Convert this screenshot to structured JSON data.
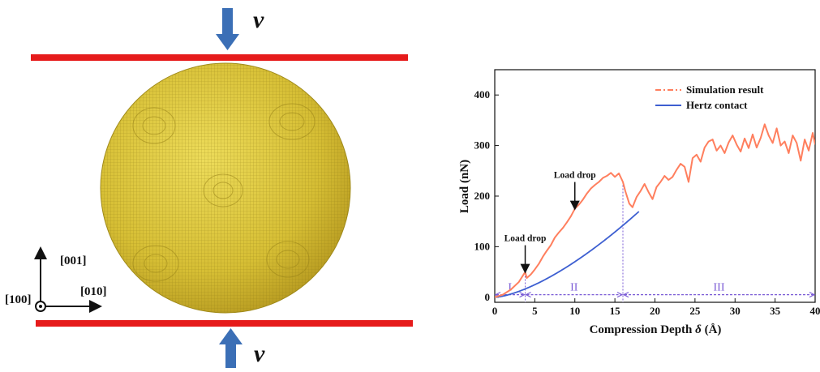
{
  "figure": {
    "velocity_symbol": "v",
    "axes_labels": {
      "x_dir": "[010]",
      "y_dir": "[001]",
      "z_dir": "[100]"
    },
    "colors": {
      "plate": "#e61b1b",
      "sphere": "#d9c236",
      "arrow": "#3b6fb6"
    }
  },
  "chart_data": {
    "type": "line",
    "xlabel_main": "Compression Depth ",
    "xlabel_symbol": "δ",
    "xlabel_unit": " (Å)",
    "ylabel": "Load (nN)",
    "xlim": [
      0,
      40
    ],
    "ylim": [
      -10,
      450
    ],
    "xticks": [
      "0",
      "5",
      "10",
      "15",
      "20",
      "25",
      "30",
      "35",
      "40"
    ],
    "yticks": [
      "0",
      "100",
      "200",
      "300",
      "400"
    ],
    "legend_position": "top-right",
    "series": [
      {
        "name": "Simulation result",
        "color": "#ff7f5e",
        "x": [
          0,
          1,
          2,
          3,
          3.8,
          4.0,
          4.5,
          5,
          5.5,
          6,
          6.5,
          7,
          7.5,
          8,
          8.5,
          9,
          9.5,
          10,
          10.5,
          11,
          11.5,
          12,
          12.5,
          13,
          13.5,
          14,
          14.5,
          15,
          15.5,
          16,
          16.3,
          16.8,
          17.2,
          17.7,
          18.2,
          18.7,
          19.2,
          19.7,
          20.2,
          20.7,
          21.2,
          21.7,
          22.2,
          22.7,
          23.2,
          23.7,
          24.2,
          24.7,
          25.2,
          25.7,
          26.2,
          26.7,
          27.2,
          27.7,
          28.2,
          28.7,
          29.2,
          29.7,
          30.2,
          30.7,
          31.2,
          31.7,
          32.2,
          32.7,
          33.2,
          33.7,
          34.2,
          34.7,
          35.2,
          35.7,
          36.2,
          36.7,
          37.2,
          37.7,
          38.2,
          38.7,
          39.2,
          39.7,
          40
        ],
        "y": [
          0,
          5,
          15,
          30,
          50,
          38,
          45,
          55,
          66,
          80,
          92,
          103,
          118,
          128,
          137,
          148,
          160,
          175,
          183,
          193,
          205,
          215,
          222,
          228,
          236,
          240,
          246,
          238,
          245,
          228,
          210,
          185,
          178,
          198,
          210,
          224,
          208,
          194,
          218,
          228,
          240,
          232,
          238,
          252,
          264,
          258,
          228,
          275,
          282,
          268,
          296,
          308,
          312,
          290,
          300,
          285,
          306,
          320,
          302,
          288,
          314,
          295,
          322,
          296,
          315,
          342,
          320,
          305,
          334,
          300,
          308,
          285,
          320,
          305,
          270,
          312,
          290,
          325,
          302
        ]
      },
      {
        "name": "Hertz contact",
        "color": "#3d5fd1",
        "formula": "y = 2.22 * x^1.5"
      }
    ],
    "annotations": [
      {
        "text": "Load drop",
        "x": 3.8,
        "y": 50
      },
      {
        "text": "Load drop",
        "x": 10,
        "y": 175
      }
    ],
    "regions": [
      {
        "label": "I",
        "from": 0,
        "to": 3.8
      },
      {
        "label": "II",
        "from": 3.8,
        "to": 16
      },
      {
        "label": "III",
        "from": 16,
        "to": 40
      }
    ]
  }
}
